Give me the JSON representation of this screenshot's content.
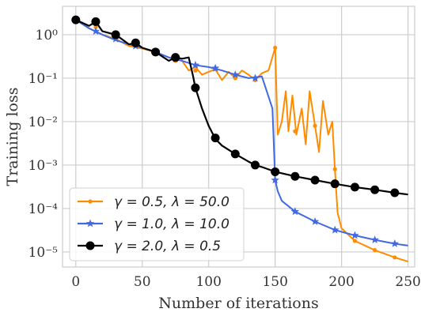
{
  "chart_data": {
    "type": "line",
    "xlabel": "Number of iterations",
    "ylabel": "Training loss",
    "y_scale": "log",
    "xlim": [
      -10,
      255
    ],
    "ylim": [
      4.5e-06,
      4.5
    ],
    "xticks": [
      0,
      50,
      100,
      150,
      200,
      250
    ],
    "xtick_labels": [
      "0",
      "50",
      "100",
      "150",
      "200",
      "250"
    ],
    "yticks": [
      1e-05,
      0.0001,
      0.001,
      0.01,
      0.1,
      1
    ],
    "ytick_labels": [
      "10⁻⁵",
      "10⁻⁴",
      "10⁻³",
      "10⁻²",
      "10⁻¹",
      "10⁰"
    ],
    "grid": true,
    "legend_position": "lower-left",
    "series": [
      {
        "name": "γ = 0.5, λ = 50.0",
        "color": "#ff8c00",
        "marker": "dot",
        "x": [
          0,
          10,
          20,
          30,
          40,
          50,
          60,
          70,
          80,
          85,
          90,
          95,
          100,
          105,
          110,
          115,
          120,
          125,
          130,
          135,
          140,
          145,
          150,
          152,
          155,
          158,
          160,
          163,
          166,
          170,
          173,
          176,
          180,
          183,
          186,
          190,
          193,
          195,
          197,
          200,
          210,
          225,
          240,
          250
        ],
        "y": [
          2.2,
          1.4,
          1.0,
          0.8,
          0.55,
          0.48,
          0.4,
          0.3,
          0.25,
          0.15,
          0.18,
          0.12,
          0.14,
          0.16,
          0.09,
          0.14,
          0.1,
          0.15,
          0.12,
          0.09,
          0.13,
          0.15,
          0.5,
          0.005,
          0.01,
          0.05,
          0.006,
          0.04,
          0.005,
          0.02,
          0.003,
          0.05,
          0.008,
          0.002,
          0.03,
          0.005,
          0.01,
          0.0008,
          8e-05,
          3.5e-05,
          1.8e-05,
          1.1e-05,
          7.5e-06,
          6e-06
        ],
        "marker_x": [
          0,
          15,
          30,
          45,
          60,
          75,
          90,
          105,
          120,
          135,
          150,
          165,
          180,
          195,
          210,
          225,
          240
        ],
        "marker_y": [
          2.2,
          1.5,
          0.9,
          0.6,
          0.4,
          0.25,
          0.15,
          0.16,
          0.1,
          0.09,
          0.5,
          0.006,
          0.008,
          0.0008,
          1.8e-05,
          1.1e-05,
          7.5e-06
        ]
      },
      {
        "name": "γ = 1.0, λ = 10.0",
        "color": "#4169e1",
        "marker": "star",
        "x": [
          0,
          10,
          20,
          30,
          40,
          50,
          60,
          70,
          80,
          90,
          100,
          110,
          120,
          130,
          140,
          148,
          150,
          152,
          155,
          165,
          180,
          195,
          210,
          225,
          240,
          250
        ],
        "y": [
          2.2,
          1.4,
          1.0,
          0.75,
          0.6,
          0.5,
          0.4,
          0.3,
          0.25,
          0.2,
          0.18,
          0.15,
          0.12,
          0.1,
          0.11,
          0.02,
          0.00045,
          0.00025,
          0.00015,
          8.5e-05,
          5e-05,
          3.2e-05,
          2.4e-05,
          1.9e-05,
          1.55e-05,
          1.4e-05
        ],
        "marker_x": [
          0,
          15,
          30,
          45,
          60,
          75,
          90,
          105,
          120,
          135,
          150,
          165,
          180,
          195,
          210,
          225,
          240
        ],
        "marker_y": [
          2.2,
          1.2,
          0.8,
          0.55,
          0.4,
          0.28,
          0.2,
          0.17,
          0.12,
          0.1,
          0.00045,
          8.5e-05,
          5e-05,
          3.2e-05,
          2.4e-05,
          1.9e-05,
          1.55e-05
        ]
      },
      {
        "name": "γ = 2.0, λ = 0.5",
        "color": "#000000",
        "marker": "circle",
        "x": [
          0,
          10,
          15,
          20,
          30,
          40,
          45,
          50,
          60,
          70,
          75,
          80,
          85,
          88,
          90,
          95,
          100,
          105,
          110,
          120,
          130,
          135,
          140,
          150,
          165,
          180,
          195,
          210,
          225,
          240,
          250
        ],
        "y": [
          2.2,
          1.6,
          2.0,
          1.2,
          1.0,
          0.6,
          0.65,
          0.5,
          0.4,
          0.25,
          0.3,
          0.28,
          0.3,
          0.12,
          0.06,
          0.02,
          0.008,
          0.004,
          0.0028,
          0.0018,
          0.0012,
          0.001,
          0.0009,
          0.0007,
          0.00055,
          0.00045,
          0.00037,
          0.00031,
          0.00027,
          0.00023,
          0.00021
        ],
        "marker_x": [
          0,
          15,
          30,
          45,
          60,
          75,
          90,
          105,
          120,
          135,
          150,
          165,
          180,
          195,
          210,
          225,
          240
        ],
        "marker_y": [
          2.2,
          2.0,
          1.0,
          0.65,
          0.4,
          0.3,
          0.06,
          0.0042,
          0.0018,
          0.001,
          0.0007,
          0.00055,
          0.00045,
          0.00037,
          0.00031,
          0.00027,
          0.00023
        ]
      }
    ]
  }
}
